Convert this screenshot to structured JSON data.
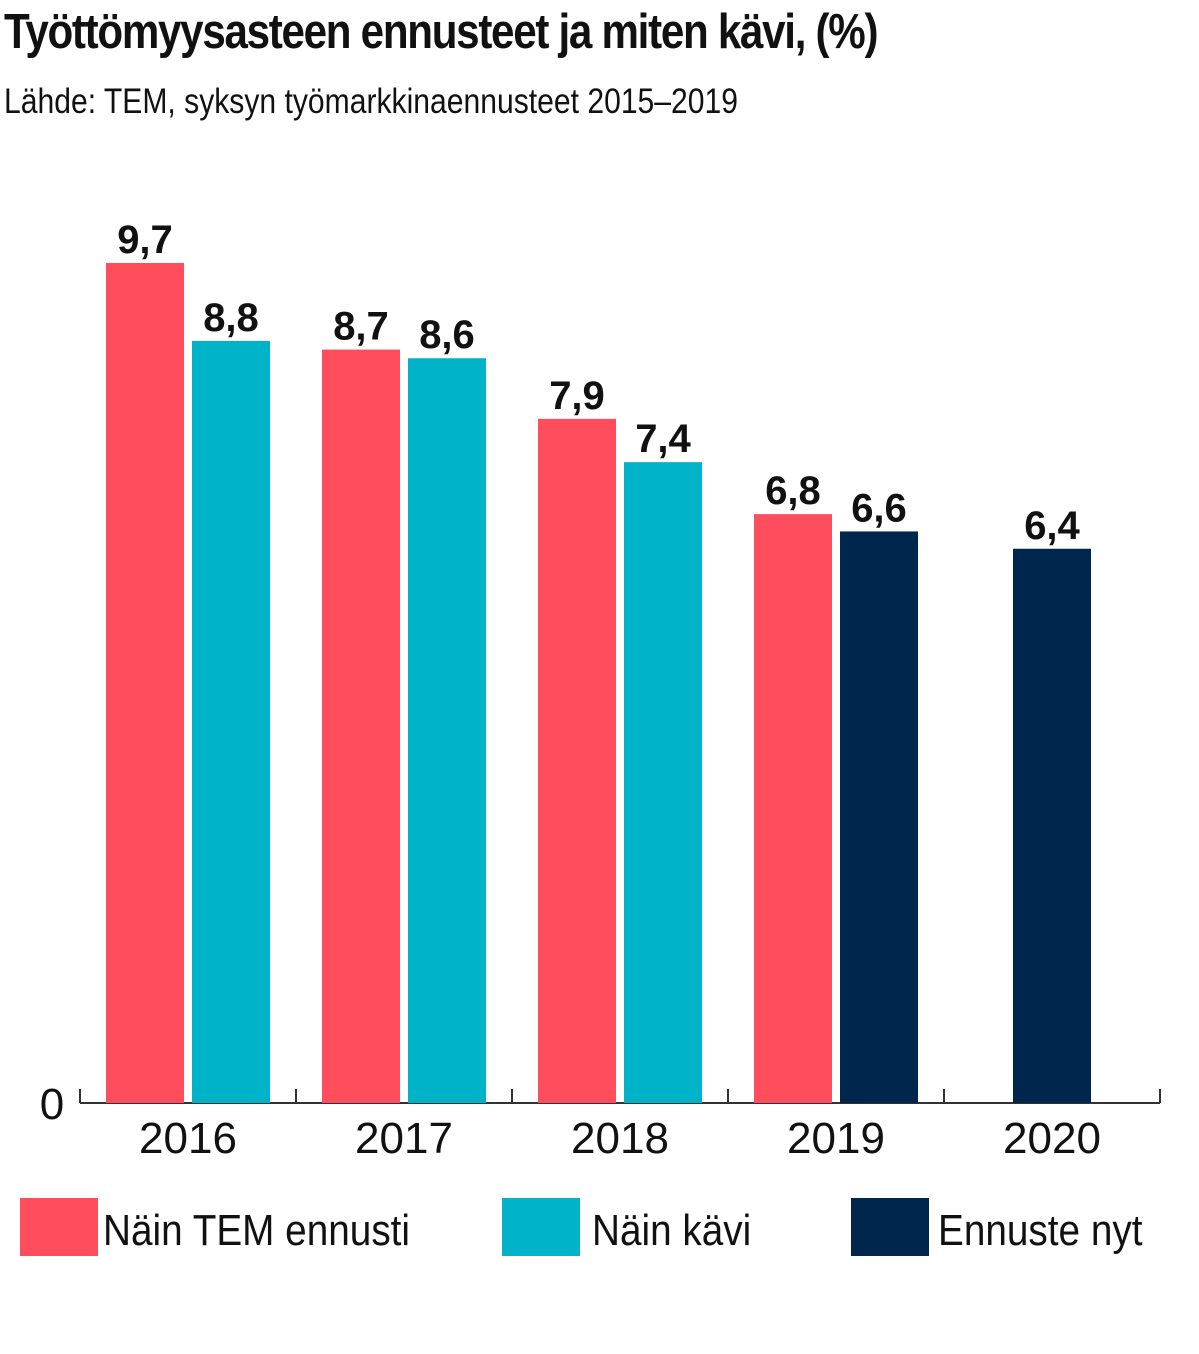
{
  "title": "Työttömyysasteen ennusteet ja miten kävi, (%)",
  "subtitle": "Lähde: TEM, syksyn työmarkkinaennusteet 2015–2019",
  "colors": {
    "forecast": "#ff4d5e",
    "actual": "#00b3c9",
    "now": "#00264d"
  },
  "chart_data": {
    "type": "bar",
    "title": "Työttömyysasteen ennusteet ja miten kävi, (%)",
    "categories": [
      "2016",
      "2017",
      "2018",
      "2019",
      "2020"
    ],
    "ylim": [
      0,
      10
    ],
    "y_ticks": [
      "0"
    ],
    "grid": false,
    "legend_position": "bottom",
    "series": [
      {
        "name": "Näin TEM ennusti",
        "color": "#ff4d5e",
        "values": [
          9.7,
          8.7,
          7.9,
          6.8,
          null
        ],
        "labels": [
          "9,7",
          "8,7",
          "7,9",
          "6,8",
          null
        ]
      },
      {
        "name": "Näin kävi",
        "color": "#00b3c9",
        "values": [
          8.8,
          8.6,
          7.4,
          null,
          null
        ],
        "labels": [
          "8,8",
          "8,6",
          "7,4",
          null,
          null
        ]
      },
      {
        "name": "Ennuste nyt",
        "color": "#00264d",
        "values": [
          null,
          null,
          null,
          6.6,
          6.4
        ],
        "labels": [
          null,
          null,
          null,
          "6,6",
          "6,4"
        ]
      }
    ]
  }
}
